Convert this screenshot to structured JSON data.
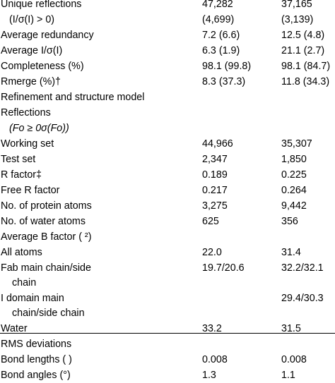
{
  "rows": [
    {
      "label": "Unique reflections",
      "v1": "47,282",
      "v2": "37,165"
    },
    {
      "label": "(I/σ(I) > 0)",
      "v1": "(4,699)",
      "v2": "(3,139)"
    },
    {
      "label": "Average redundancy",
      "v1": "7.2 (6.6)",
      "v2": "12.5 (4.8)"
    },
    {
      "label": "Average I/σ(I)",
      "v1": "6.3 (1.9)",
      "v2": "21.1 (2.7)"
    },
    {
      "label": "Completeness (%)",
      "v1": "98.1 (99.8)",
      "v2": "98.1 (84.7)"
    },
    {
      "label": "Rmerge (%)†",
      "v1": "8.3 (37.3)",
      "v2": "11.8 (34.3)"
    },
    {
      "label": "Refinement and structure model",
      "v1": "",
      "v2": ""
    },
    {
      "label": "Reflections",
      "v1": "",
      "v2": ""
    },
    {
      "label": "(Fo ≥ 0σ(Fo))",
      "v1": "",
      "v2": ""
    },
    {
      "label": "Working set",
      "v1": "44,966",
      "v2": "35,307"
    },
    {
      "label": "Test set",
      "v1": "2,347",
      "v2": "1,850"
    },
    {
      "label": "R factor‡",
      "v1": "0.189",
      "v2": "0.225"
    },
    {
      "label": "Free R factor",
      "v1": "0.217",
      "v2": "0.264"
    },
    {
      "label": "No. of protein atoms",
      "v1": "3,275",
      "v2": "9,442"
    },
    {
      "label": "No. of water atoms",
      "v1": "625",
      "v2": "356"
    },
    {
      "label": "Average B factor ( ²)",
      "v1": "",
      "v2": ""
    },
    {
      "label": "All atoms",
      "v1": "22.0",
      "v2": "31.4"
    },
    {
      "label": "Fab main chain/side",
      "v1": "19.7/20.6",
      "v2": "32.2/32.1"
    },
    {
      "label": "chain",
      "v1": "",
      "v2": ""
    },
    {
      "label": "I domain main",
      "v1": "",
      "v2": "29.4/30.3"
    },
    {
      "label": "chain/side chain",
      "v1": "",
      "v2": ""
    },
    {
      "label": "Water",
      "v1": "33.2",
      "v2": "31.5"
    },
    {
      "label": "RMS deviations",
      "v1": "",
      "v2": ""
    },
    {
      "label": "Bond lengths ( )",
      "v1": "0.008",
      "v2": "0.008"
    },
    {
      "label": "Bond angles (°)",
      "v1": "1.3",
      "v2": "1.1"
    }
  ]
}
